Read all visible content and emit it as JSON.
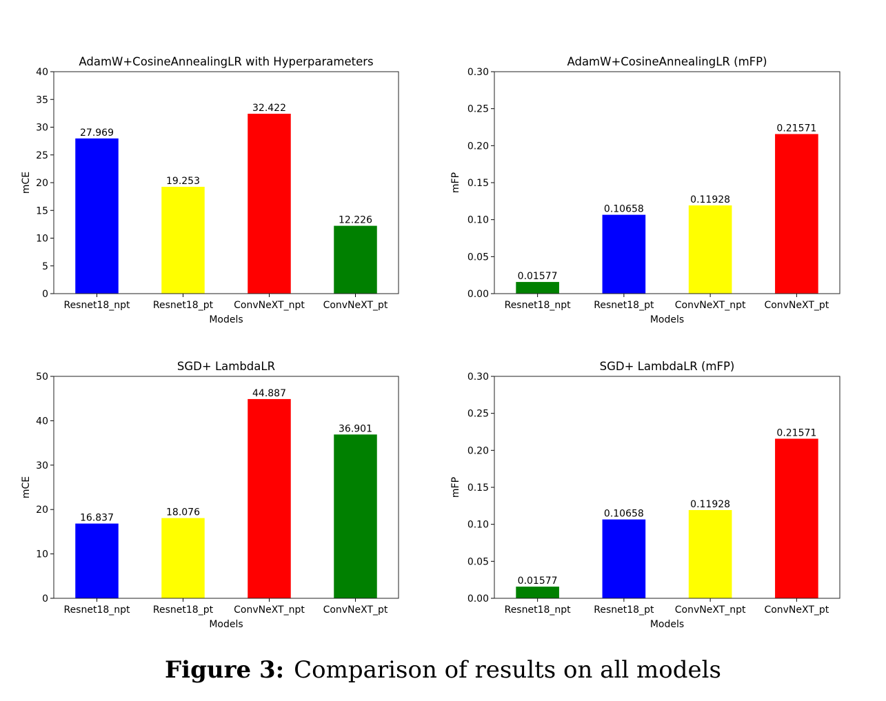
{
  "caption": {
    "label": "Figure 3:",
    "text": "Comparison of results on all models"
  },
  "chart_data": [
    {
      "type": "bar",
      "title": "AdamW+CosineAnnealingLR with Hyperparameters",
      "xlabel": "Models",
      "ylabel": "mCE",
      "ylim": [
        0,
        40
      ],
      "yticks": [
        "0",
        "5",
        "10",
        "15",
        "20",
        "25",
        "30",
        "35",
        "40"
      ],
      "ytick_values": [
        0,
        5,
        10,
        15,
        20,
        25,
        30,
        35,
        40
      ],
      "categories": [
        "Resnet18_npt",
        "Resnet18_pt",
        "ConvNeXT_npt",
        "ConvNeXT_pt"
      ],
      "values": [
        27.969,
        19.253,
        32.422,
        12.226
      ],
      "value_labels": [
        "27.969",
        "19.253",
        "32.422",
        "12.226"
      ],
      "colors": [
        "#0000ff",
        "#ffff00",
        "#ff0000",
        "#008000"
      ],
      "grid": false
    },
    {
      "type": "bar",
      "title": "AdamW+CosineAnnealingLR (mFP)",
      "xlabel": "Models",
      "ylabel": "mFP",
      "ylim": [
        0,
        0.3
      ],
      "yticks": [
        "0.00",
        "0.05",
        "0.10",
        "0.15",
        "0.20",
        "0.25",
        "0.30"
      ],
      "ytick_values": [
        0,
        0.05,
        0.1,
        0.15,
        0.2,
        0.25,
        0.3
      ],
      "categories": [
        "Resnet18_npt",
        "Resnet18_pt",
        "ConvNeXT_npt",
        "ConvNeXT_pt"
      ],
      "values": [
        0.01577,
        0.10658,
        0.11928,
        0.21571
      ],
      "value_labels": [
        "0.01577",
        "0.10658",
        "0.11928",
        "0.21571"
      ],
      "colors": [
        "#008000",
        "#0000ff",
        "#ffff00",
        "#ff0000"
      ],
      "grid": false
    },
    {
      "type": "bar",
      "title": "SGD+ LambdaLR",
      "xlabel": "Models",
      "ylabel": "mCE",
      "ylim": [
        0,
        50
      ],
      "yticks": [
        "0",
        "10",
        "20",
        "30",
        "40",
        "50"
      ],
      "ytick_values": [
        0,
        10,
        20,
        30,
        40,
        50
      ],
      "categories": [
        "Resnet18_npt",
        "Resnet18_pt",
        "ConvNeXT_npt",
        "ConvNeXT_pt"
      ],
      "values": [
        16.837,
        18.076,
        44.887,
        36.901
      ],
      "value_labels": [
        "16.837",
        "18.076",
        "44.887",
        "36.901"
      ],
      "colors": [
        "#0000ff",
        "#ffff00",
        "#ff0000",
        "#008000"
      ],
      "grid": false
    },
    {
      "type": "bar",
      "title": "SGD+ LambdaLR (mFP)",
      "xlabel": "Models",
      "ylabel": "mFP",
      "ylim": [
        0,
        0.3
      ],
      "yticks": [
        "0.00",
        "0.05",
        "0.10",
        "0.15",
        "0.20",
        "0.25",
        "0.30"
      ],
      "ytick_values": [
        0,
        0.05,
        0.1,
        0.15,
        0.2,
        0.25,
        0.3
      ],
      "categories": [
        "Resnet18_npt",
        "Resnet18_pt",
        "ConvNeXT_npt",
        "ConvNeXT_pt"
      ],
      "values": [
        0.01577,
        0.10658,
        0.11928,
        0.21571
      ],
      "value_labels": [
        "0.01577",
        "0.10658",
        "0.11928",
        "0.21571"
      ],
      "colors": [
        "#008000",
        "#0000ff",
        "#ffff00",
        "#ff0000"
      ],
      "grid": false
    }
  ]
}
